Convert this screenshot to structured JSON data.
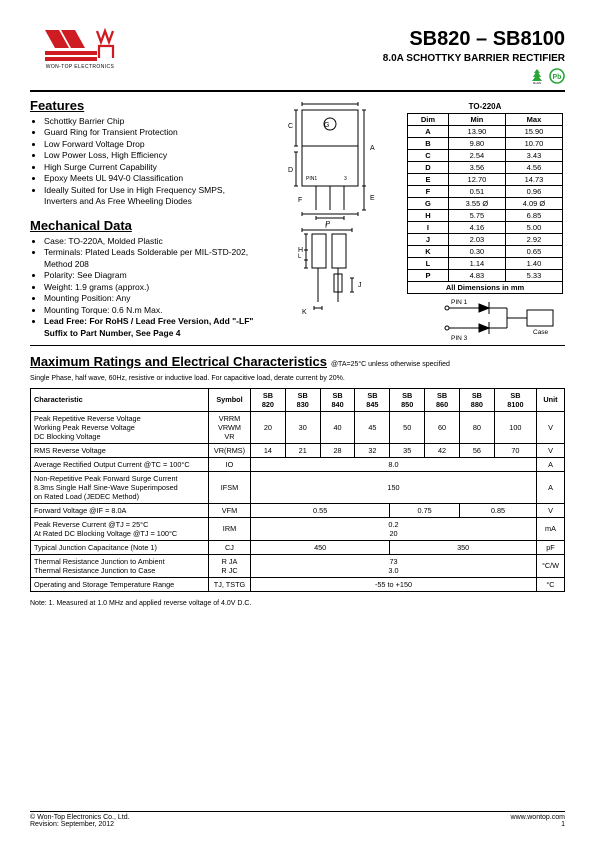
{
  "logo_company": "WON-TOP ELECTRONICS",
  "header": {
    "part_range": "SB820 – SB8100",
    "subtitle": "8.0A SCHOTTKY BARRIER RECTIFIER"
  },
  "features": {
    "title": "Features",
    "items": [
      "Schottky Barrier Chip",
      "Guard Ring for Transient Protection",
      "Low Forward Voltage Drop",
      "Low Power Loss, High Efficiency",
      "High Surge Current Capability",
      "Epoxy Meets UL 94V-0 Classification",
      "Ideally Suited for Use in High Frequency SMPS, Inverters and As Free Wheeling Diodes"
    ]
  },
  "mech": {
    "title": "Mechanical Data",
    "items": [
      "Case: TO-220A, Molded Plastic",
      "Terminals: Plated Leads Solderable per MIL-STD-202, Method 208",
      "Polarity: See Diagram",
      "Weight: 1.9 grams (approx.)",
      "Mounting Position: Any",
      "Mounting Torque: 0.6 N.m Max."
    ],
    "leadfree": "Lead Free: For RoHS / Lead Free Version, Add \"-LF\" Suffix to Part Number, See Page 4"
  },
  "dims": {
    "pkg": "TO-220A",
    "headers": [
      "Dim",
      "Min",
      "Max"
    ],
    "rows": [
      [
        "A",
        "13.90",
        "15.90"
      ],
      [
        "B",
        "9.80",
        "10.70"
      ],
      [
        "C",
        "2.54",
        "3.43"
      ],
      [
        "D",
        "3.56",
        "4.56"
      ],
      [
        "E",
        "12.70",
        "14.73"
      ],
      [
        "F",
        "0.51",
        "0.96"
      ],
      [
        "G",
        "3.55 Ø",
        "4.09 Ø"
      ],
      [
        "H",
        "5.75",
        "6.85"
      ],
      [
        "I",
        "4.16",
        "5.00"
      ],
      [
        "J",
        "2.03",
        "2.92"
      ],
      [
        "K",
        "0.30",
        "0.65"
      ],
      [
        "L",
        "1.14",
        "1.40"
      ],
      [
        "P",
        "4.83",
        "5.33"
      ]
    ],
    "footer": "All Dimensions in mm"
  },
  "pkg_labels": {
    "A": "A",
    "B": "B",
    "C": "C",
    "D": "D",
    "E": "E",
    "F": "F",
    "G": "G",
    "H": "H",
    "I": "I",
    "J": "J",
    "K": "K",
    "L": "L",
    "P": "P",
    "pin1": "PIN1",
    "pin3": "3",
    "pin1_label": "PIN 1",
    "pin3_label": "PIN 3",
    "case": "Case"
  },
  "ratings": {
    "title": "Maximum Ratings and Electrical Characteristics",
    "cond": "@TA=25°C unless otherwise specified",
    "note": "Single Phase, half wave, 60Hz, resistive or inductive load. For capacitive load, derate current by 20%.",
    "cols": [
      "Characteristic",
      "Symbol",
      "SB\n820",
      "SB\n830",
      "SB\n840",
      "SB\n845",
      "SB\n850",
      "SB\n860",
      "SB\n880",
      "SB\n8100",
      "Unit"
    ],
    "rows": [
      {
        "char": "Peak Repetitive Reverse Voltage\nWorking Peak Reverse Voltage\nDC Blocking Voltage",
        "sym": "VRRM\nVRWM\nVR",
        "v": [
          "20",
          "30",
          "40",
          "45",
          "50",
          "60",
          "80",
          "100"
        ],
        "unit": "V"
      },
      {
        "char": "RMS Reverse Voltage",
        "sym": "VR(RMS)",
        "v": [
          "14",
          "21",
          "28",
          "32",
          "35",
          "42",
          "56",
          "70"
        ],
        "unit": "V"
      },
      {
        "char": "Average Rectified Output Current    @TC = 100°C",
        "sym": "IO",
        "span": "8.0",
        "unit": "A"
      },
      {
        "char": "Non-Repetitive Peak Forward Surge Current\n8.3ms Single Half Sine-Wave Superimposed\non Rated Load (JEDEC Method)",
        "sym": "IFSM",
        "span": "150",
        "unit": "A"
      },
      {
        "char": "Forward Voltage                              @IF = 8.0A",
        "sym": "VFM",
        "groups": [
          [
            "0.55",
            4
          ],
          [
            "0.75",
            2
          ],
          [
            "0.85",
            2
          ]
        ],
        "unit": "V"
      },
      {
        "char": "Peak Reverse Current            @TJ = 25°C\nAt Rated DC Blocking Voltage    @TJ = 100°C",
        "sym": "IRM",
        "stack": [
          "0.2",
          "20"
        ],
        "unit": "mA"
      },
      {
        "char": "Typical Junction Capacitance (Note 1)",
        "sym": "CJ",
        "groups": [
          [
            "450",
            4
          ],
          [
            "350",
            4
          ]
        ],
        "unit": "pF"
      },
      {
        "char": "Thermal Resistance Junction to Ambient\nThermal Resistance Junction to Case",
        "sym": "R JA\nR JC",
        "stack": [
          "73",
          "3.0"
        ],
        "unit": "°C/W"
      },
      {
        "char": "Operating and Storage Temperature Range",
        "sym": "TJ, TSTG",
        "span": "-55 to +150",
        "unit": "°C"
      }
    ],
    "tablenote": "Note:  1. Measured at 1.0 MHz and applied reverse voltage of 4.0V D.C."
  },
  "footer": {
    "left1": "© Won-Top Electronics Co., Ltd.",
    "left2": "Revision: September, 2012",
    "right1": "www.wontop.com",
    "right2": "1"
  },
  "colors": {
    "logo_red": "#cf1b22",
    "rohs_green": "#2aa639"
  }
}
